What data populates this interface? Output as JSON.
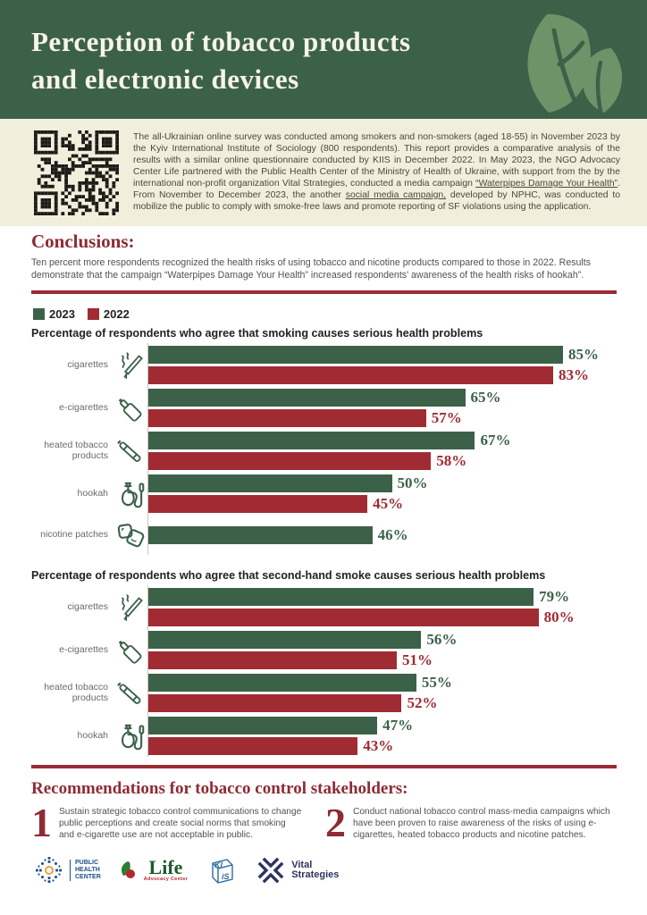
{
  "colors": {
    "green": "#3C6149",
    "red": "#A12B33",
    "heading_red": "#8E2B34",
    "divider_red": "#9C2B33",
    "cream": "#F2EEDC",
    "leaf": "#6F9368",
    "axis": "#C9C8C0",
    "qr": "#1C1B17"
  },
  "header": {
    "title_line1": "Perception of tobacco products",
    "title_line2": "and electronic devices"
  },
  "intro": {
    "part1": "The all-Ukrainian online survey was conducted among smokers and non-smokers (aged 18-55) in November 2023 by the Kyiv International Institute of Sociology (800 respondents). This report provides a comparative analysis of the results with a similar online questionnaire conducted by KIIS in December 2022. In May 2023, the NGO Advocacy Center Life partnered with the Public Health Center of the Ministry of Health of Ukraine, with support from the by the international non-profit organization Vital Strategies, conducted a media campaign ",
    "link1": "“Waterpipes Damage Your Health”",
    "part2": ". From November to December 2023, the another ",
    "link2": "social media campaign,",
    "part3": " developed by NPHC, was conducted to mobilize the public to comply with smoke-free laws and promote reporting of SF violations using the application."
  },
  "conclusions": {
    "heading": "Conclusions:",
    "body": "Ten percent more respondents recognized the health risks of using tobacco and nicotine products compared to those in 2022. Results demonstrate that the campaign “Waterpipes Damage Your Health” increased respondents' awareness of the health risks of hookah”."
  },
  "legend": [
    {
      "label": "2023",
      "color": "#3C6149"
    },
    {
      "label": "2022",
      "color": "#A12B33"
    }
  ],
  "chart_data": [
    {
      "type": "bar",
      "orientation": "horizontal",
      "title": "Percentage of respondents who agree that smoking causes serious health problems",
      "categories": [
        "cigarettes",
        "e-cigarettes",
        "heated tobacco products",
        "hookah",
        "nicotine patches"
      ],
      "icons": [
        "cigarette-icon",
        "e-cigarette-icon",
        "heated-tobacco-icon",
        "hookah-icon",
        "nicotine-patches-icon"
      ],
      "series": [
        {
          "name": "2023",
          "color": "#3C6149",
          "values": [
            85,
            65,
            67,
            50,
            46
          ]
        },
        {
          "name": "2022",
          "color": "#A12B33",
          "values": [
            83,
            57,
            58,
            45,
            null
          ]
        }
      ],
      "unit": "%",
      "xlim": [
        0,
        100
      ],
      "grid": false,
      "legend_position": "top-left"
    },
    {
      "type": "bar",
      "orientation": "horizontal",
      "title": "Percentage of respondents who agree that second-hand smoke causes serious health problems",
      "categories": [
        "cigarettes",
        "e-cigarettes",
        "heated tobacco products",
        "hookah"
      ],
      "icons": [
        "cigarette-icon",
        "e-cigarette-icon",
        "heated-tobacco-icon",
        "hookah-icon"
      ],
      "series": [
        {
          "name": "2023",
          "color": "#3C6149",
          "values": [
            79,
            56,
            55,
            47
          ]
        },
        {
          "name": "2022",
          "color": "#A12B33",
          "values": [
            80,
            51,
            52,
            43
          ]
        }
      ],
      "unit": "%",
      "xlim": [
        0,
        100
      ],
      "grid": false,
      "legend_position": "shared-top"
    }
  ],
  "recommendations": {
    "heading": "Recommendations for tobacco control stakeholders:",
    "items": [
      {
        "number": "1",
        "text": "Sustain strategic tobacco control communications to change public perceptions and create social norms that smoking and e-cigarette use are not acceptable in public."
      },
      {
        "number": "2",
        "text": "Conduct national tobacco control mass-media campaigns which have been proven to raise awareness of the risks of using e-cigarettes, heated tobacco products and nicotine patches."
      }
    ]
  },
  "footer": {
    "logos": [
      {
        "name": "Public Health Center",
        "line1": "PUBLIC",
        "line2": "HEALTH",
        "line3": "CENTER"
      },
      {
        "name": "Life Advocacy Center",
        "title": "Life",
        "subtitle": "Advocacy Center"
      },
      {
        "name": "KIIS",
        "text": "KIiS"
      },
      {
        "name": "Vital Strategies",
        "line1": "Vital",
        "line2": "Strategies"
      }
    ]
  }
}
